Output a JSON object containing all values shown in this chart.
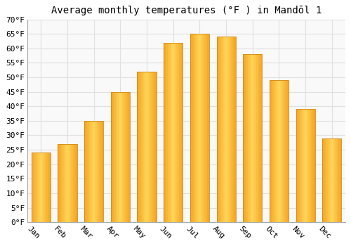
{
  "title": "Average monthly temperatures (°F ) in Mandōl 1",
  "months": [
    "Jan",
    "Feb",
    "Mar",
    "Apr",
    "May",
    "Jun",
    "Jul",
    "Aug",
    "Sep",
    "Oct",
    "Nov",
    "Dec"
  ],
  "values": [
    24,
    27,
    35,
    45,
    52,
    62,
    65,
    64,
    58,
    49,
    39,
    29
  ],
  "ylim": [
    0,
    70
  ],
  "yticks": [
    0,
    5,
    10,
    15,
    20,
    25,
    30,
    35,
    40,
    45,
    50,
    55,
    60,
    65,
    70
  ],
  "bar_color_left": "#F5A623",
  "bar_color_center": "#FFD55A",
  "bar_color_right": "#F5A623",
  "bar_edge_color": "#D4881A",
  "background_color": "#ffffff",
  "plot_bg_color": "#f9f9f9",
  "grid_color": "#e0e0e0",
  "title_fontsize": 10,
  "tick_fontsize": 8,
  "xlabel_rotation": -45,
  "bar_width": 0.72
}
